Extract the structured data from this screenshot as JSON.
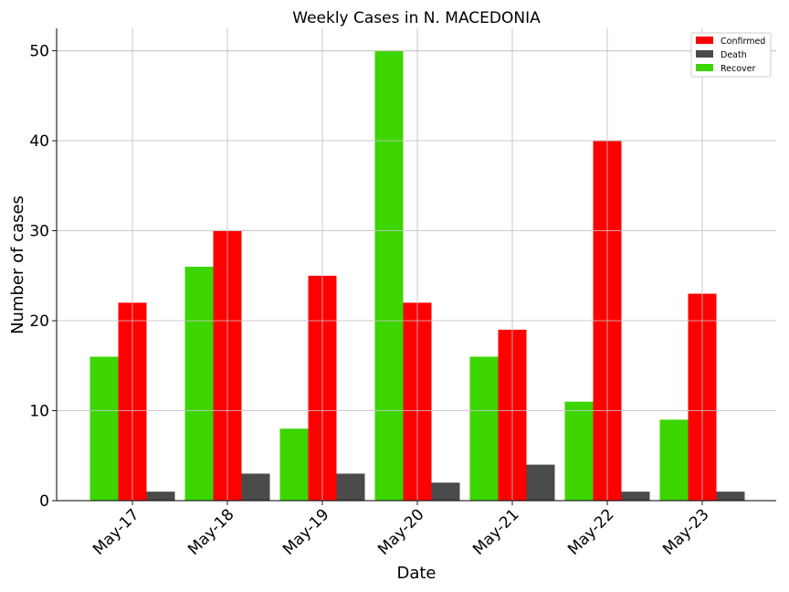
{
  "chart_data": {
    "type": "bar",
    "title": "Weekly Cases in N. MACEDONIA",
    "xlabel": "Date",
    "ylabel": "Number of cases",
    "categories": [
      "May-17",
      "May-18",
      "May-19",
      "May-20",
      "May-21",
      "May-22",
      "May-23"
    ],
    "series": [
      {
        "name": "Recover",
        "color": "#3dd500",
        "values": [
          16,
          26,
          8,
          50,
          16,
          11,
          9
        ]
      },
      {
        "name": "Confirmed",
        "color": "#ff0000",
        "values": [
          22,
          30,
          25,
          22,
          19,
          40,
          23
        ]
      },
      {
        "name": "Death",
        "color": "#4a4a4a",
        "values": [
          1,
          3,
          3,
          2,
          4,
          1,
          1
        ]
      }
    ],
    "legend_order": [
      "Confirmed",
      "Death",
      "Recover"
    ],
    "legend_position": "top-right",
    "ylim": [
      0,
      52.5
    ],
    "yticks": [
      0,
      10,
      20,
      30,
      40,
      50
    ],
    "grid": true
  }
}
